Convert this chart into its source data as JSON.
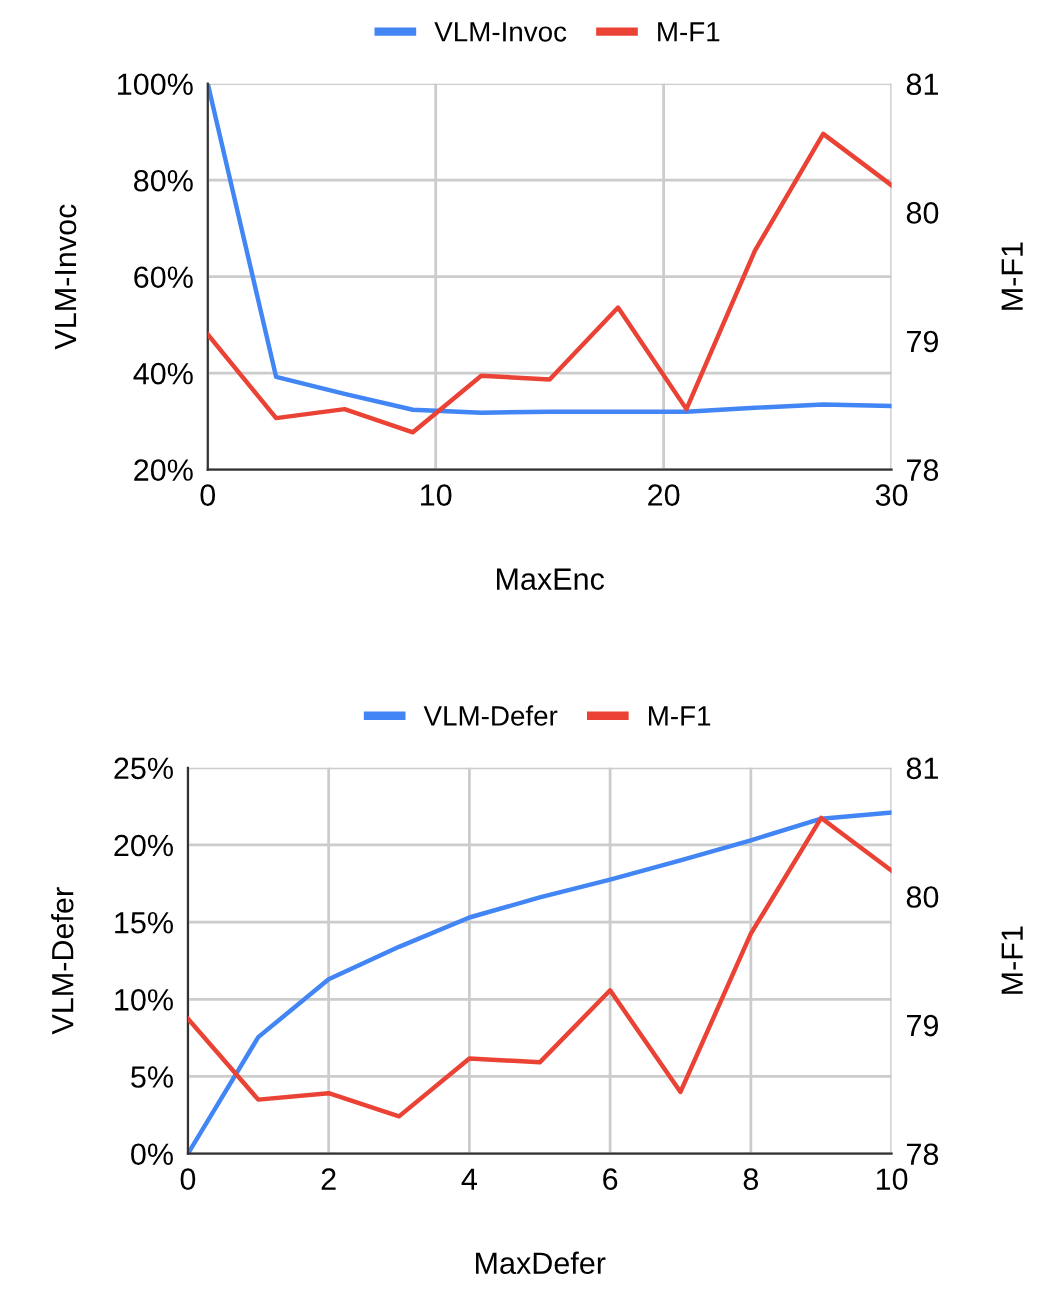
{
  "chart_data": [
    {
      "type": "line",
      "xlabel": "MaxEnc",
      "ylabel": "VLM-Invoc",
      "y2label": "M-F1",
      "legend": "top",
      "grid": true,
      "marker": "none",
      "line_style": "solid",
      "x": [
        0,
        3,
        6,
        9,
        12,
        15,
        18,
        21,
        24,
        27,
        30
      ],
      "xlim": [
        0,
        30
      ],
      "xticks": [
        0,
        10,
        20,
        30
      ],
      "ylim": [
        20,
        100
      ],
      "yticks": [
        {
          "value": 20,
          "label": "20%"
        },
        {
          "value": 40,
          "label": "40%"
        },
        {
          "value": 60,
          "label": "60%"
        },
        {
          "value": 80,
          "label": "80%"
        },
        {
          "value": 100,
          "label": "100%"
        }
      ],
      "y2lim": [
        78,
        81
      ],
      "y2ticks": [
        78,
        79,
        80,
        81
      ],
      "series": [
        {
          "name": "VLM-Invoc",
          "color": "#4285f4",
          "values": [
            100,
            39.2,
            35.7,
            32.4,
            31.8,
            32,
            32,
            32,
            32.8,
            33.5,
            33.2
          ]
        },
        {
          "name": "M-F1",
          "color": "#ea4335",
          "axis": "y2",
          "values": [
            79.05,
            78.4,
            78.47,
            78.29,
            78.73,
            78.7,
            79.26,
            78.47,
            79.7,
            80.61,
            80.21
          ]
        }
      ]
    },
    {
      "type": "line",
      "xlabel": "MaxDefer",
      "ylabel": "VLM-Defer",
      "y2label": "M-F1",
      "legend": "top",
      "grid": true,
      "marker": "none",
      "line_style": "solid",
      "x": [
        0,
        1,
        2,
        3,
        4,
        5,
        6,
        7,
        8,
        9,
        10
      ],
      "xlim": [
        0,
        10
      ],
      "xticks": [
        0,
        2,
        4,
        6,
        8,
        10
      ],
      "ylim": [
        0,
        25
      ],
      "yticks": [
        {
          "value": 0,
          "label": "0%"
        },
        {
          "value": 5,
          "label": "5%"
        },
        {
          "value": 10,
          "label": "10%"
        },
        {
          "value": 15,
          "label": "15%"
        },
        {
          "value": 20,
          "label": "20%"
        },
        {
          "value": 25,
          "label": "25%"
        }
      ],
      "y2lim": [
        78,
        81
      ],
      "y2ticks": [
        78,
        79,
        80,
        81
      ],
      "series": [
        {
          "name": "VLM-Defer",
          "color": "#4285f4",
          "values": [
            0,
            7.55,
            11.3,
            13.4,
            15.3,
            16.6,
            17.75,
            19.0,
            20.3,
            21.7,
            22.1
          ]
        },
        {
          "name": "M-F1",
          "color": "#ea4335",
          "axis": "y2",
          "values": [
            79.05,
            78.42,
            78.47,
            78.29,
            78.74,
            78.71,
            79.27,
            78.48,
            79.71,
            80.61,
            80.2
          ]
        }
      ]
    }
  ]
}
